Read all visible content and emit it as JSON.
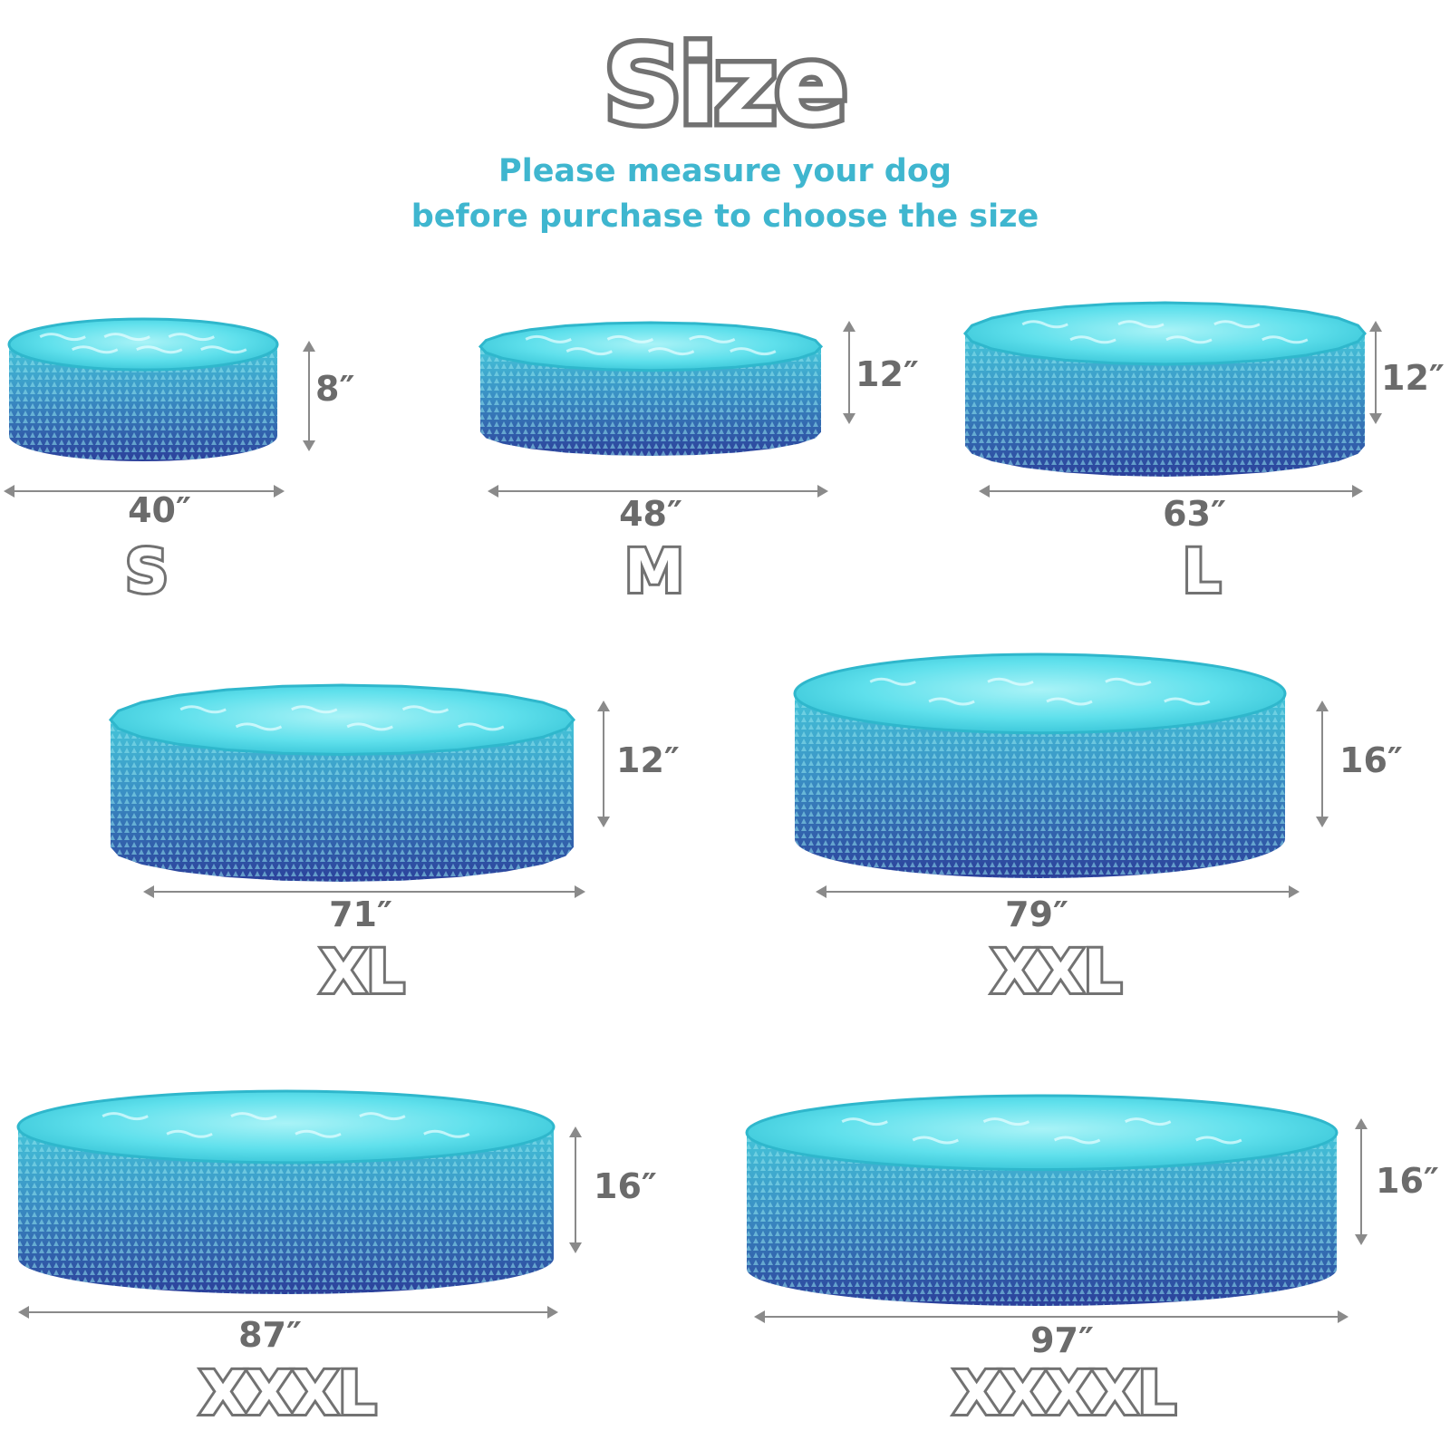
{
  "title": "Size",
  "subtitle": {
    "line1": "Please measure your dog",
    "line2": "before purchase to choose the size"
  },
  "colors": {
    "heading_outline": "#727272",
    "subtitle": "#3fb6cf",
    "dimension_text": "#6b6b6b",
    "water": "#5fe0ec",
    "wall_top": "#45c6d9",
    "wall_bottom": "#2b3f9a"
  },
  "pools": [
    {
      "size": "S",
      "diameter": "40″",
      "height": "8″",
      "shape": "round"
    },
    {
      "size": "M",
      "diameter": "48″",
      "height": "12″",
      "shape": "octagonal"
    },
    {
      "size": "L",
      "diameter": "63″",
      "height": "12″",
      "shape": "octagonal"
    },
    {
      "size": "XL",
      "diameter": "71″",
      "height": "12″",
      "shape": "octagonal"
    },
    {
      "size": "XXL",
      "diameter": "79″",
      "height": "16″",
      "shape": "round"
    },
    {
      "size": "XXXL",
      "diameter": "87″",
      "height": "16″",
      "shape": "round"
    },
    {
      "size": "XXXXL",
      "diameter": "97″",
      "height": "16″",
      "shape": "round"
    }
  ]
}
